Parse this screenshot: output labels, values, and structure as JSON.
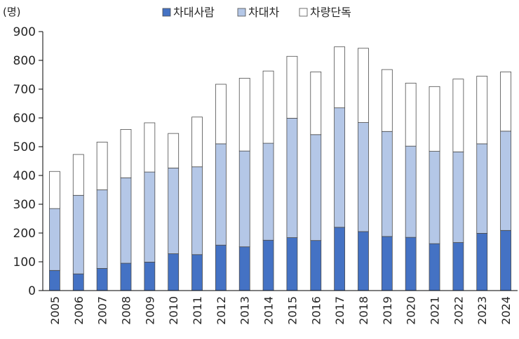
{
  "chart_data": {
    "type": "bar",
    "stacked": true,
    "unit_label": "(명)",
    "categories": [
      "2005",
      "2006",
      "2007",
      "2008",
      "2009",
      "2010",
      "2011",
      "2012",
      "2013",
      "2014",
      "2015",
      "2016",
      "2017",
      "2018",
      "2019",
      "2020",
      "2021",
      "2022",
      "2023",
      "2024"
    ],
    "series": [
      {
        "name": "차대사람",
        "color": "#4472c4",
        "values": [
          70,
          58,
          77,
          95,
          99,
          128,
          125,
          158,
          152,
          175,
          184,
          174,
          220,
          205,
          188,
          185,
          163,
          167,
          199,
          209
        ]
      },
      {
        "name": "차대차",
        "color": "#b4c7e7",
        "values": [
          215,
          273,
          273,
          297,
          313,
          298,
          305,
          352,
          333,
          337,
          415,
          368,
          415,
          379,
          365,
          317,
          321,
          315,
          311,
          345
        ]
      },
      {
        "name": "차량단독",
        "color": "#ffffff",
        "values": [
          129,
          142,
          166,
          168,
          171,
          120,
          173,
          207,
          253,
          251,
          215,
          218,
          212,
          258,
          215,
          219,
          225,
          253,
          235,
          206
        ]
      }
    ],
    "ylim": [
      0,
      900
    ],
    "yticks": [
      0,
      100,
      200,
      300,
      400,
      500,
      600,
      700,
      800,
      900
    ],
    "legend_position": "top",
    "grid": false
  }
}
